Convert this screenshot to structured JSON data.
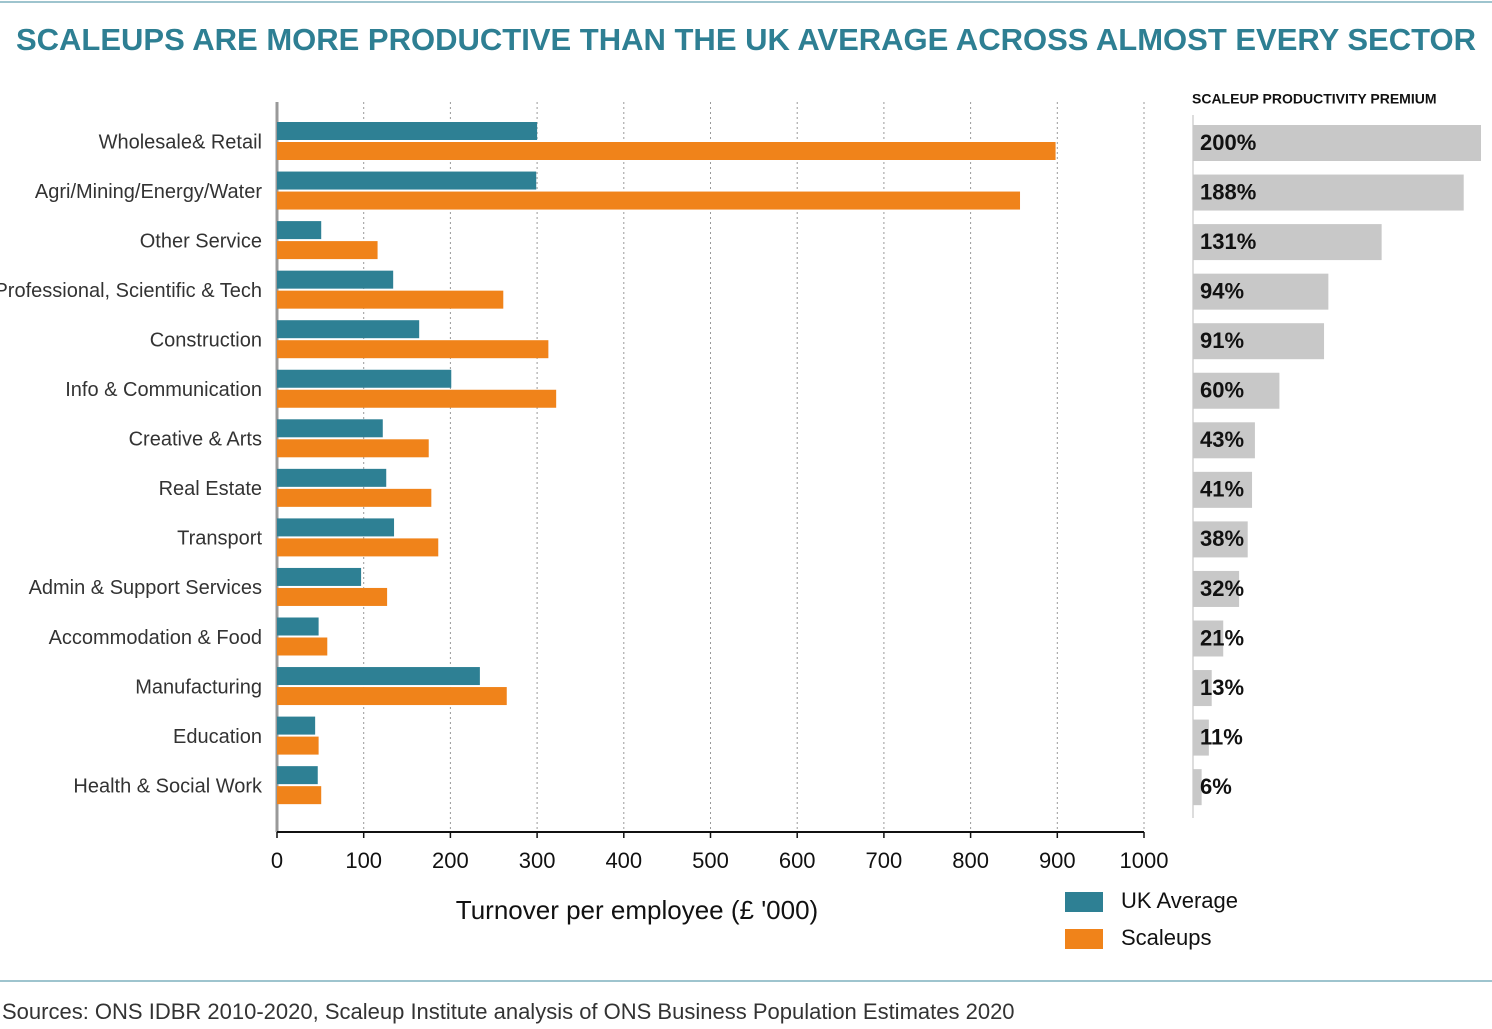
{
  "chart_data": [
    {
      "type": "bar",
      "orientation": "horizontal",
      "title": "SCALEUPS ARE MORE PRODUCTIVE THAN THE UK AVERAGE ACROSS ALMOST EVERY SECTOR",
      "x_label": "Turnover per employee (£ '000)",
      "source": "Sources: ONS IDBR 2010-2020, Scaleup Institute analysis of ONS Business Population Estimates 2020",
      "categories": [
        "Wholesale& Retail",
        "Agri/Mining/Energy/Water",
        "Other Service",
        "Professional, Scientific & Tech",
        "Construction",
        "Info & Communication",
        "Creative & Arts",
        "Real Estate",
        "Transport",
        "Admin & Support Services",
        "Accommodation & Food",
        "Manufacturing",
        "Education",
        "Health & Social Work"
      ],
      "series": [
        {
          "name": "UK Average",
          "color": "#2e8094",
          "values": [
            300,
            299,
            51,
            134,
            164,
            201,
            122,
            126,
            135,
            97,
            48,
            234,
            44,
            47
          ]
        },
        {
          "name": "Scaleups",
          "color": "#f0831a",
          "values": [
            898,
            857,
            116,
            261,
            313,
            322,
            175,
            178,
            186,
            127,
            58,
            265,
            48,
            51
          ]
        }
      ],
      "xlim": [
        0,
        1000
      ],
      "xticks": [
        0,
        100,
        200,
        300,
        400,
        500,
        600,
        700,
        800,
        900,
        1000
      ],
      "grid": true,
      "legend": "bottom-right"
    },
    {
      "type": "bar",
      "orientation": "horizontal",
      "title": "SCALEUP PRODUCTIVITY PREMIUM",
      "color": "#c8c8c8",
      "values": [
        200,
        188,
        131,
        94,
        91,
        60,
        43,
        41,
        38,
        32,
        21,
        13,
        11,
        6
      ],
      "value_labels": [
        "200%",
        "188%",
        "131%",
        "94%",
        "91%",
        "60%",
        "43%",
        "41%",
        "38%",
        "32%",
        "21%",
        "13%",
        "11%",
        "6%"
      ]
    }
  ]
}
